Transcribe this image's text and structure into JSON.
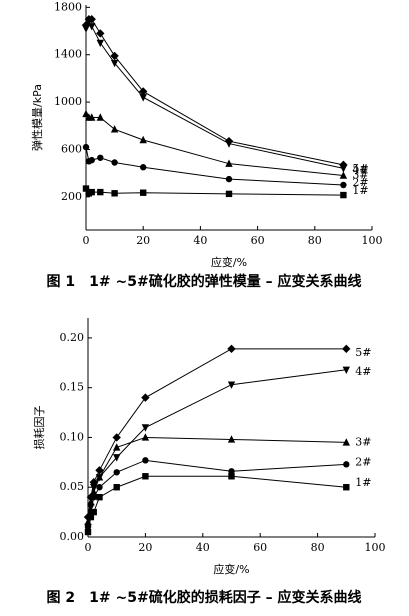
{
  "chart_data": [
    {
      "type": "line",
      "caption": "图 1　1# ~5#硫化胶的弹性模量 – 应变关系曲线",
      "x_label": "应变/%",
      "y_label": "弹性模量/kPa",
      "x": [
        0,
        1,
        2,
        5,
        10,
        20,
        50,
        90
      ],
      "xlim": [
        0,
        100
      ],
      "xticks": [
        0,
        20,
        40,
        60,
        80,
        100
      ],
      "ylim": [
        -80,
        1820
      ],
      "yticks": [
        200,
        600,
        1000,
        1400,
        1800
      ],
      "series": [
        {
          "name": "1#",
          "marker": "square",
          "color": "#000000",
          "values": [
            270,
            230,
            240,
            240,
            230,
            235,
            225,
            215
          ]
        },
        {
          "name": "2#",
          "marker": "circle",
          "color": "#000000",
          "values": [
            620,
            500,
            510,
            530,
            490,
            450,
            350,
            300
          ]
        },
        {
          "name": "3#",
          "marker": "triangle",
          "color": "#000000",
          "values": [
            900,
            870,
            870,
            870,
            770,
            680,
            480,
            380
          ]
        },
        {
          "name": "4#",
          "marker": "down-triangle",
          "color": "#000000",
          "values": [
            1620,
            1680,
            1640,
            1500,
            1330,
            1040,
            650,
            440
          ]
        },
        {
          "name": "5#",
          "marker": "diamond",
          "color": "#000000",
          "values": [
            1650,
            1700,
            1700,
            1580,
            1390,
            1090,
            670,
            470
          ]
        }
      ]
    },
    {
      "type": "line",
      "caption": "图 2　1# ~5#硫化胶的损耗因子 – 应变关系曲线",
      "x_label": "应变/%",
      "y_label": "损耗因子",
      "x": [
        0,
        1,
        2,
        4,
        10,
        20,
        50,
        90
      ],
      "xlim": [
        0,
        100
      ],
      "xticks": [
        0,
        20,
        40,
        60,
        80,
        100
      ],
      "ylim": [
        0,
        0.22
      ],
      "yticks": [
        {
          "value": 0,
          "label": "0.00"
        },
        0.05,
        {
          "value": 0.1,
          "label": "0.10"
        },
        0.15,
        {
          "value": 0.2,
          "label": "0.20"
        }
      ],
      "series": [
        {
          "name": "1#",
          "marker": "square",
          "color": "#000000",
          "values": [
            0.005,
            0.02,
            0.025,
            0.04,
            0.05,
            0.061,
            0.061,
            0.05
          ]
        },
        {
          "name": "2#",
          "marker": "circle",
          "color": "#000000",
          "values": [
            0.01,
            0.025,
            0.04,
            0.05,
            0.065,
            0.077,
            0.066,
            0.073
          ]
        },
        {
          "name": "3#",
          "marker": "triangle",
          "color": "#000000",
          "values": [
            0.015,
            0.035,
            0.045,
            0.06,
            0.09,
            0.1,
            0.098,
            0.095
          ]
        },
        {
          "name": "4#",
          "marker": "down-triangle",
          "color": "#000000",
          "values": [
            0.01,
            0.03,
            0.05,
            0.06,
            0.08,
            0.11,
            0.153,
            0.168
          ]
        },
        {
          "name": "5#",
          "marker": "diamond",
          "color": "#000000",
          "values": [
            0.02,
            0.04,
            0.055,
            0.067,
            0.1,
            0.14,
            0.189,
            0.189
          ]
        }
      ]
    }
  ]
}
